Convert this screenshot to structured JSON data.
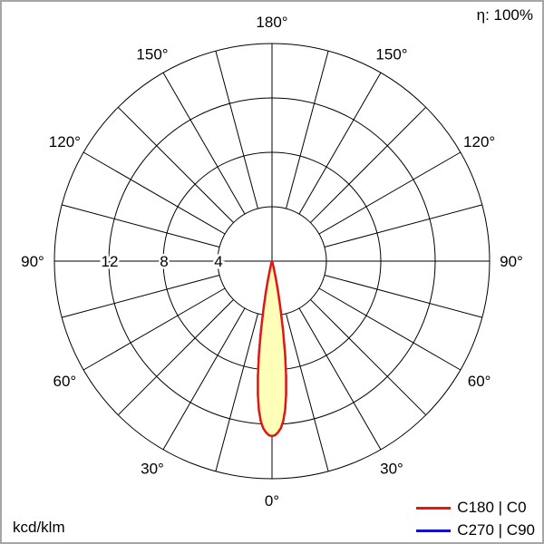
{
  "header": {
    "efficiency": "η: 100%"
  },
  "footer": {
    "unit": "kcd/klm"
  },
  "legend": [
    {
      "label": "C180 | C0",
      "color": "#e8150d"
    },
    {
      "label": "C270 | C90",
      "color": "#1212c8"
    }
  ],
  "chart_data": {
    "type": "polar",
    "subtype": "luminous-intensity-distribution",
    "unit": "kcd/klm",
    "efficiency_percent": 100,
    "max_value": 16,
    "grid": {
      "ring_values": [
        4,
        8,
        12,
        16
      ],
      "ring_labels": [
        "4",
        "8",
        "12"
      ],
      "spoke_step_deg": 15,
      "angle_label_values": [
        0,
        30,
        60,
        90,
        120,
        150,
        180
      ],
      "angle_labels": [
        "0°",
        "30°",
        "60°",
        "90°",
        "120°",
        "150°",
        "180°"
      ]
    },
    "series": [
      {
        "name": "C180 | C0",
        "color": "#e8150d",
        "fill": "#ffffb7",
        "symmetric": true,
        "points": [
          [
            0,
            12.85
          ],
          [
            1,
            12.8
          ],
          [
            2,
            12.6
          ],
          [
            3,
            12.3
          ],
          [
            4,
            11.8
          ],
          [
            5,
            11.0
          ],
          [
            6,
            9.9
          ],
          [
            7,
            8.5
          ],
          [
            8,
            6.9
          ],
          [
            9,
            5.2
          ],
          [
            10,
            3.6
          ],
          [
            11,
            2.4
          ],
          [
            12,
            1.5
          ],
          [
            13,
            0.9
          ],
          [
            14,
            0.5
          ],
          [
            15,
            0.25
          ],
          [
            16,
            0.1
          ],
          [
            17,
            0
          ]
        ]
      },
      {
        "name": "C270 | C90",
        "color": "#1212c8",
        "fill": "#ffffb7",
        "symmetric": true,
        "points": [
          [
            0,
            12.85
          ],
          [
            1,
            12.8
          ],
          [
            2,
            12.6
          ],
          [
            3,
            12.3
          ],
          [
            4,
            11.8
          ],
          [
            5,
            11.0
          ],
          [
            6,
            9.9
          ],
          [
            7,
            8.5
          ],
          [
            8,
            6.9
          ],
          [
            9,
            5.2
          ],
          [
            10,
            3.6
          ],
          [
            11,
            2.4
          ],
          [
            12,
            1.5
          ],
          [
            13,
            0.9
          ],
          [
            14,
            0.5
          ],
          [
            15,
            0.25
          ],
          [
            16,
            0.1
          ],
          [
            17,
            0
          ]
        ]
      }
    ]
  }
}
